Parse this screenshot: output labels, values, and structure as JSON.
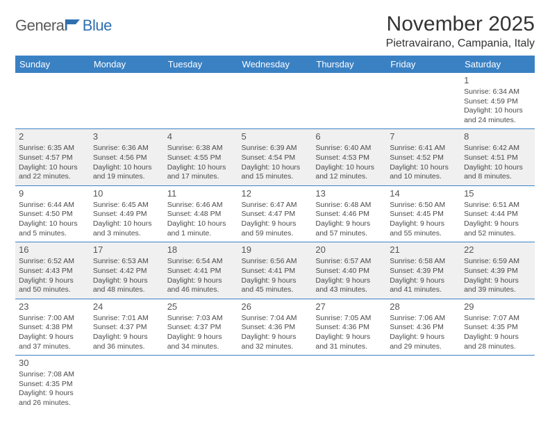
{
  "logo": {
    "part1": "General",
    "part2": "Blue"
  },
  "title": "November 2025",
  "location": "Pietravairano, Campania, Italy",
  "colors": {
    "header_bg": "#3a81c4",
    "header_text": "#ffffff",
    "cell_border": "#3a81c4",
    "shaded_bg": "#f0f0f0",
    "logo_blue": "#2f6fb0",
    "logo_gray": "#5a5a5a",
    "body_text": "#4a4a4a"
  },
  "weekdays": [
    "Sunday",
    "Monday",
    "Tuesday",
    "Wednesday",
    "Thursday",
    "Friday",
    "Saturday"
  ],
  "weeks": [
    [
      {
        "day": "",
        "sunrise": "",
        "sunset": "",
        "daylight": "",
        "shaded": false
      },
      {
        "day": "",
        "sunrise": "",
        "sunset": "",
        "daylight": "",
        "shaded": false
      },
      {
        "day": "",
        "sunrise": "",
        "sunset": "",
        "daylight": "",
        "shaded": false
      },
      {
        "day": "",
        "sunrise": "",
        "sunset": "",
        "daylight": "",
        "shaded": false
      },
      {
        "day": "",
        "sunrise": "",
        "sunset": "",
        "daylight": "",
        "shaded": false
      },
      {
        "day": "",
        "sunrise": "",
        "sunset": "",
        "daylight": "",
        "shaded": false
      },
      {
        "day": "1",
        "sunrise": "Sunrise: 6:34 AM",
        "sunset": "Sunset: 4:59 PM",
        "daylight": "Daylight: 10 hours and 24 minutes.",
        "shaded": false
      }
    ],
    [
      {
        "day": "2",
        "sunrise": "Sunrise: 6:35 AM",
        "sunset": "Sunset: 4:57 PM",
        "daylight": "Daylight: 10 hours and 22 minutes.",
        "shaded": true
      },
      {
        "day": "3",
        "sunrise": "Sunrise: 6:36 AM",
        "sunset": "Sunset: 4:56 PM",
        "daylight": "Daylight: 10 hours and 19 minutes.",
        "shaded": true
      },
      {
        "day": "4",
        "sunrise": "Sunrise: 6:38 AM",
        "sunset": "Sunset: 4:55 PM",
        "daylight": "Daylight: 10 hours and 17 minutes.",
        "shaded": true
      },
      {
        "day": "5",
        "sunrise": "Sunrise: 6:39 AM",
        "sunset": "Sunset: 4:54 PM",
        "daylight": "Daylight: 10 hours and 15 minutes.",
        "shaded": true
      },
      {
        "day": "6",
        "sunrise": "Sunrise: 6:40 AM",
        "sunset": "Sunset: 4:53 PM",
        "daylight": "Daylight: 10 hours and 12 minutes.",
        "shaded": true
      },
      {
        "day": "7",
        "sunrise": "Sunrise: 6:41 AM",
        "sunset": "Sunset: 4:52 PM",
        "daylight": "Daylight: 10 hours and 10 minutes.",
        "shaded": true
      },
      {
        "day": "8",
        "sunrise": "Sunrise: 6:42 AM",
        "sunset": "Sunset: 4:51 PM",
        "daylight": "Daylight: 10 hours and 8 minutes.",
        "shaded": true
      }
    ],
    [
      {
        "day": "9",
        "sunrise": "Sunrise: 6:44 AM",
        "sunset": "Sunset: 4:50 PM",
        "daylight": "Daylight: 10 hours and 5 minutes.",
        "shaded": false
      },
      {
        "day": "10",
        "sunrise": "Sunrise: 6:45 AM",
        "sunset": "Sunset: 4:49 PM",
        "daylight": "Daylight: 10 hours and 3 minutes.",
        "shaded": false
      },
      {
        "day": "11",
        "sunrise": "Sunrise: 6:46 AM",
        "sunset": "Sunset: 4:48 PM",
        "daylight": "Daylight: 10 hours and 1 minute.",
        "shaded": false
      },
      {
        "day": "12",
        "sunrise": "Sunrise: 6:47 AM",
        "sunset": "Sunset: 4:47 PM",
        "daylight": "Daylight: 9 hours and 59 minutes.",
        "shaded": false
      },
      {
        "day": "13",
        "sunrise": "Sunrise: 6:48 AM",
        "sunset": "Sunset: 4:46 PM",
        "daylight": "Daylight: 9 hours and 57 minutes.",
        "shaded": false
      },
      {
        "day": "14",
        "sunrise": "Sunrise: 6:50 AM",
        "sunset": "Sunset: 4:45 PM",
        "daylight": "Daylight: 9 hours and 55 minutes.",
        "shaded": false
      },
      {
        "day": "15",
        "sunrise": "Sunrise: 6:51 AM",
        "sunset": "Sunset: 4:44 PM",
        "daylight": "Daylight: 9 hours and 52 minutes.",
        "shaded": false
      }
    ],
    [
      {
        "day": "16",
        "sunrise": "Sunrise: 6:52 AM",
        "sunset": "Sunset: 4:43 PM",
        "daylight": "Daylight: 9 hours and 50 minutes.",
        "shaded": true
      },
      {
        "day": "17",
        "sunrise": "Sunrise: 6:53 AM",
        "sunset": "Sunset: 4:42 PM",
        "daylight": "Daylight: 9 hours and 48 minutes.",
        "shaded": true
      },
      {
        "day": "18",
        "sunrise": "Sunrise: 6:54 AM",
        "sunset": "Sunset: 4:41 PM",
        "daylight": "Daylight: 9 hours and 46 minutes.",
        "shaded": true
      },
      {
        "day": "19",
        "sunrise": "Sunrise: 6:56 AM",
        "sunset": "Sunset: 4:41 PM",
        "daylight": "Daylight: 9 hours and 45 minutes.",
        "shaded": true
      },
      {
        "day": "20",
        "sunrise": "Sunrise: 6:57 AM",
        "sunset": "Sunset: 4:40 PM",
        "daylight": "Daylight: 9 hours and 43 minutes.",
        "shaded": true
      },
      {
        "day": "21",
        "sunrise": "Sunrise: 6:58 AM",
        "sunset": "Sunset: 4:39 PM",
        "daylight": "Daylight: 9 hours and 41 minutes.",
        "shaded": true
      },
      {
        "day": "22",
        "sunrise": "Sunrise: 6:59 AM",
        "sunset": "Sunset: 4:39 PM",
        "daylight": "Daylight: 9 hours and 39 minutes.",
        "shaded": true
      }
    ],
    [
      {
        "day": "23",
        "sunrise": "Sunrise: 7:00 AM",
        "sunset": "Sunset: 4:38 PM",
        "daylight": "Daylight: 9 hours and 37 minutes.",
        "shaded": false
      },
      {
        "day": "24",
        "sunrise": "Sunrise: 7:01 AM",
        "sunset": "Sunset: 4:37 PM",
        "daylight": "Daylight: 9 hours and 36 minutes.",
        "shaded": false
      },
      {
        "day": "25",
        "sunrise": "Sunrise: 7:03 AM",
        "sunset": "Sunset: 4:37 PM",
        "daylight": "Daylight: 9 hours and 34 minutes.",
        "shaded": false
      },
      {
        "day": "26",
        "sunrise": "Sunrise: 7:04 AM",
        "sunset": "Sunset: 4:36 PM",
        "daylight": "Daylight: 9 hours and 32 minutes.",
        "shaded": false
      },
      {
        "day": "27",
        "sunrise": "Sunrise: 7:05 AM",
        "sunset": "Sunset: 4:36 PM",
        "daylight": "Daylight: 9 hours and 31 minutes.",
        "shaded": false
      },
      {
        "day": "28",
        "sunrise": "Sunrise: 7:06 AM",
        "sunset": "Sunset: 4:36 PM",
        "daylight": "Daylight: 9 hours and 29 minutes.",
        "shaded": false
      },
      {
        "day": "29",
        "sunrise": "Sunrise: 7:07 AM",
        "sunset": "Sunset: 4:35 PM",
        "daylight": "Daylight: 9 hours and 28 minutes.",
        "shaded": false
      }
    ],
    [
      {
        "day": "30",
        "sunrise": "Sunrise: 7:08 AM",
        "sunset": "Sunset: 4:35 PM",
        "daylight": "Daylight: 9 hours and 26 minutes.",
        "shaded": false
      },
      {
        "day": "",
        "sunrise": "",
        "sunset": "",
        "daylight": "",
        "shaded": false
      },
      {
        "day": "",
        "sunrise": "",
        "sunset": "",
        "daylight": "",
        "shaded": false
      },
      {
        "day": "",
        "sunrise": "",
        "sunset": "",
        "daylight": "",
        "shaded": false
      },
      {
        "day": "",
        "sunrise": "",
        "sunset": "",
        "daylight": "",
        "shaded": false
      },
      {
        "day": "",
        "sunrise": "",
        "sunset": "",
        "daylight": "",
        "shaded": false
      },
      {
        "day": "",
        "sunrise": "",
        "sunset": "",
        "daylight": "",
        "shaded": false
      }
    ]
  ]
}
